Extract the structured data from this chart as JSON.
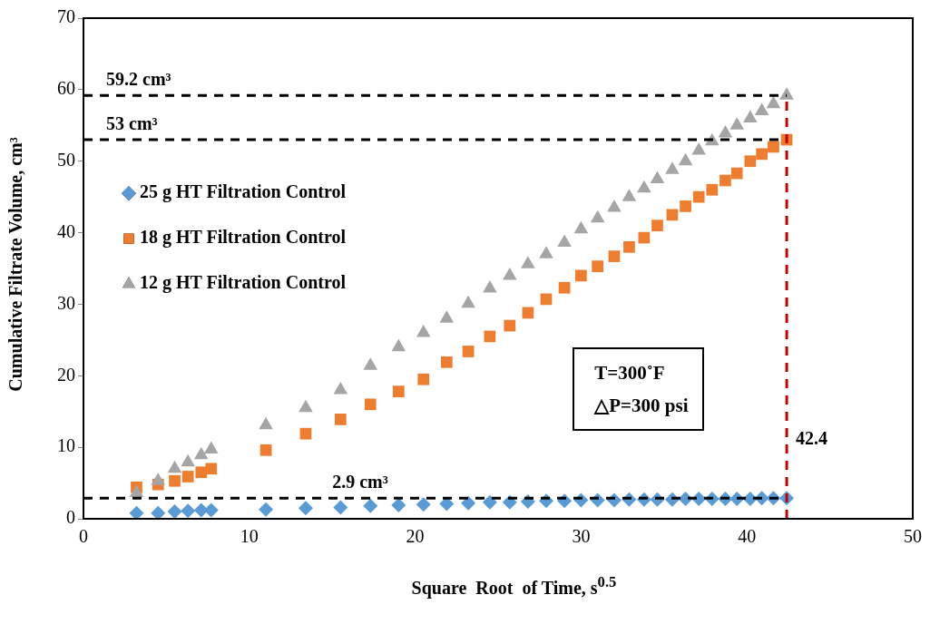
{
  "chart_data": {
    "type": "scatter",
    "xlabel": "Square  Root  of Time, s$^{0.5}$",
    "ylabel": "Cumulative Filtrate Volume, cm³",
    "x": [
      3.2,
      4.5,
      5.5,
      6.3,
      7.1,
      7.7,
      11,
      13.4,
      15.5,
      17.3,
      19,
      20.5,
      21.9,
      23.2,
      24.5,
      25.7,
      26.8,
      27.9,
      29,
      30,
      31,
      32,
      32.9,
      33.8,
      34.6,
      35.5,
      36.3,
      37.1,
      37.9,
      38.7,
      39.4,
      40.2,
      40.9,
      41.6,
      42.4
    ],
    "series": [
      {
        "name": "25 g HT Filtration Control",
        "color": "#5b9bd5",
        "marker": "diamond",
        "values": [
          0.8,
          0.8,
          1.0,
          1.1,
          1.2,
          1.2,
          1.3,
          1.5,
          1.6,
          1.8,
          1.9,
          2.0,
          2.1,
          2.2,
          2.3,
          2.3,
          2.4,
          2.5,
          2.5,
          2.6,
          2.6,
          2.6,
          2.7,
          2.7,
          2.7,
          2.7,
          2.8,
          2.8,
          2.8,
          2.8,
          2.8,
          2.8,
          2.9,
          2.9,
          2.9
        ]
      },
      {
        "name": "18 g HT Filtration Control",
        "color": "#ed7d31",
        "marker": "square",
        "values": [
          4.4,
          4.8,
          5.3,
          5.9,
          6.5,
          7.0,
          9.6,
          11.9,
          13.9,
          16.0,
          17.8,
          19.5,
          21.9,
          23.4,
          25.5,
          27.0,
          28.8,
          30.7,
          32.3,
          34.0,
          35.3,
          36.7,
          38.0,
          39.3,
          41.0,
          42.5,
          43.7,
          45.0,
          46.0,
          47.3,
          48.3,
          50.0,
          51.0,
          52.0,
          53.0
        ]
      },
      {
        "name": "12 g HT Filtration Control",
        "color": "#a5a5a5",
        "marker": "triangle",
        "values": [
          3.6,
          5.3,
          7.0,
          7.9,
          8.9,
          9.7,
          13.1,
          15.5,
          18.0,
          21.4,
          24.0,
          26.0,
          28.0,
          30.1,
          32.2,
          34.0,
          35.6,
          37.0,
          38.6,
          40.5,
          42.0,
          43.5,
          45.0,
          46.2,
          47.5,
          48.8,
          50.0,
          51.5,
          52.8,
          53.9,
          55.0,
          56.0,
          57.0,
          58.0,
          59.2
        ]
      }
    ],
    "xlim": [
      0,
      50
    ],
    "xticks": [
      0,
      10,
      20,
      30,
      40,
      50
    ],
    "ylim": [
      0,
      70
    ],
    "yticks": [
      0,
      10,
      20,
      30,
      40,
      50,
      60,
      70
    ],
    "legend": "top left",
    "grid": false,
    "ref_lines": [
      {
        "axis": "y",
        "value": 59.2,
        "label": "59.2 cm³",
        "color": "#000000",
        "line_style": "dashed"
      },
      {
        "axis": "y",
        "value": 53,
        "label": "53 cm³",
        "color": "#000000",
        "line_style": "dashed"
      },
      {
        "axis": "y",
        "value": 2.9,
        "label": "2.9 cm³",
        "color": "#000000",
        "line_style": "dashed"
      },
      {
        "axis": "x",
        "value": 42.4,
        "label": "42.4",
        "color": "#c00000",
        "line_style": "dashed"
      }
    ],
    "annotations": [
      "T=300˚F",
      "△P=300 psi"
    ]
  }
}
